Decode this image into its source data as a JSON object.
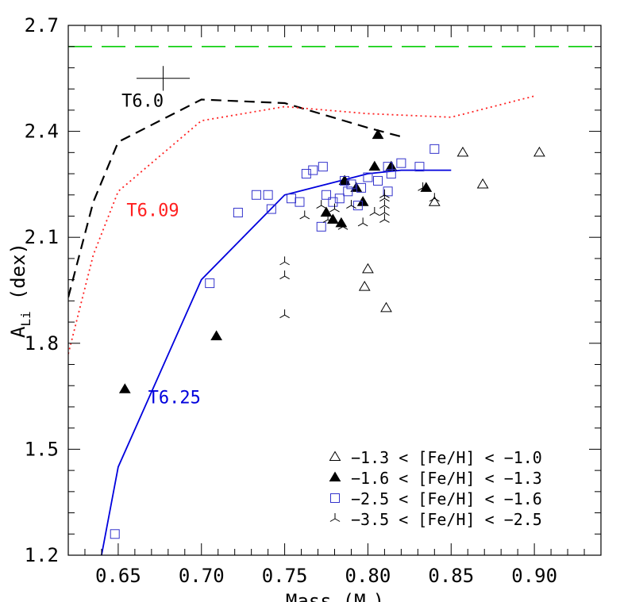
{
  "chart_data": {
    "type": "scatter",
    "xlabel_main": "Mass",
    "xlabel_unit": "(M",
    "xlabel_unit_close": ")",
    "ylabel_main": "A",
    "ylabel_sub": "Li",
    "ylabel_unit": "(dex)",
    "xlim": [
      0.62,
      0.94
    ],
    "ylim": [
      1.2,
      2.7
    ],
    "xticks": [
      0.65,
      0.7,
      0.75,
      0.8,
      0.85,
      0.9
    ],
    "xtick_labels": [
      "0.65",
      "0.70",
      "0.75",
      "0.80",
      "0.85",
      "0.90"
    ],
    "yticks": [
      1.2,
      1.5,
      1.8,
      2.1,
      2.4,
      2.7
    ],
    "ytick_labels": [
      "1.2",
      "1.5",
      "1.8",
      "2.1",
      "2.4",
      "2.7"
    ],
    "reference_line": {
      "y": 2.64,
      "color": "#00cc00",
      "style": "long-dash"
    },
    "error_bar": {
      "x": 0.677,
      "y": 2.55,
      "xerr": 0.016,
      "yerr": 0.035
    },
    "models": [
      {
        "name": "T6.0",
        "color": "#000000",
        "style": "dashed",
        "label_at": [
          0.652,
          2.47
        ],
        "points": [
          [
            0.62,
            1.93
          ],
          [
            0.635,
            2.2
          ],
          [
            0.65,
            2.37
          ],
          [
            0.7,
            2.49
          ],
          [
            0.75,
            2.48
          ],
          [
            0.8,
            2.41
          ],
          [
            0.82,
            2.385
          ]
        ]
      },
      {
        "name": "T6.09",
        "color": "#ff2020",
        "style": "dotted",
        "label_at": [
          0.655,
          2.16
        ],
        "points": [
          [
            0.62,
            1.77
          ],
          [
            0.635,
            2.05
          ],
          [
            0.65,
            2.23
          ],
          [
            0.7,
            2.43
          ],
          [
            0.75,
            2.47
          ],
          [
            0.8,
            2.45
          ],
          [
            0.85,
            2.44
          ],
          [
            0.9,
            2.5
          ]
        ]
      },
      {
        "name": "T6.25",
        "color": "#0000dd",
        "style": "solid",
        "label_at": [
          0.668,
          1.63
        ],
        "points": [
          [
            0.64,
            1.2
          ],
          [
            0.65,
            1.45
          ],
          [
            0.7,
            1.98
          ],
          [
            0.75,
            2.22
          ],
          [
            0.8,
            2.28
          ],
          [
            0.82,
            2.29
          ],
          [
            0.85,
            2.29
          ]
        ]
      }
    ],
    "series": [
      {
        "name": "−1.3 < [Fe/H] < −1.0",
        "marker": "open-triangle",
        "color": "#000000",
        "points": [
          [
            0.857,
            2.34
          ],
          [
            0.903,
            2.34
          ],
          [
            0.869,
            2.25
          ],
          [
            0.84,
            2.2
          ],
          [
            0.8,
            2.01
          ],
          [
            0.798,
            1.96
          ],
          [
            0.811,
            1.9
          ]
        ]
      },
      {
        "name": "−1.6 < [Fe/H] < −1.3",
        "marker": "filled-triangle",
        "color": "#000000",
        "points": [
          [
            0.806,
            2.39
          ],
          [
            0.804,
            2.3
          ],
          [
            0.814,
            2.3
          ],
          [
            0.786,
            2.26
          ],
          [
            0.793,
            2.24
          ],
          [
            0.835,
            2.24
          ],
          [
            0.775,
            2.17
          ],
          [
            0.779,
            2.15
          ],
          [
            0.784,
            2.14
          ],
          [
            0.797,
            2.2
          ],
          [
            0.709,
            1.82
          ],
          [
            0.654,
            1.67
          ]
        ]
      },
      {
        "name": "−2.5 < [Fe/H] < −1.6",
        "marker": "open-square",
        "color": "#3333cc",
        "points": [
          [
            0.84,
            2.35
          ],
          [
            0.82,
            2.31
          ],
          [
            0.831,
            2.3
          ],
          [
            0.812,
            2.3
          ],
          [
            0.767,
            2.29
          ],
          [
            0.773,
            2.3
          ],
          [
            0.763,
            2.28
          ],
          [
            0.814,
            2.28
          ],
          [
            0.8,
            2.27
          ],
          [
            0.786,
            2.26
          ],
          [
            0.806,
            2.26
          ],
          [
            0.79,
            2.25
          ],
          [
            0.796,
            2.24
          ],
          [
            0.733,
            2.22
          ],
          [
            0.74,
            2.22
          ],
          [
            0.788,
            2.23
          ],
          [
            0.812,
            2.23
          ],
          [
            0.775,
            2.22
          ],
          [
            0.783,
            2.21
          ],
          [
            0.754,
            2.21
          ],
          [
            0.759,
            2.2
          ],
          [
            0.779,
            2.2
          ],
          [
            0.742,
            2.18
          ],
          [
            0.722,
            2.17
          ],
          [
            0.794,
            2.19
          ],
          [
            0.772,
            2.13
          ],
          [
            0.705,
            1.97
          ],
          [
            0.648,
            1.26
          ]
        ]
      },
      {
        "name": "−3.5 < [Fe/H] < −2.5",
        "marker": "tri-star",
        "color": "#000000",
        "points": [
          [
            0.75,
            2.03
          ],
          [
            0.75,
            1.99
          ],
          [
            0.75,
            1.88
          ],
          [
            0.772,
            2.19
          ],
          [
            0.78,
            2.18
          ],
          [
            0.79,
            2.19
          ],
          [
            0.776,
            2.15
          ],
          [
            0.785,
            2.13
          ],
          [
            0.797,
            2.14
          ],
          [
            0.81,
            2.21
          ],
          [
            0.81,
            2.19
          ],
          [
            0.81,
            2.17
          ],
          [
            0.81,
            2.15
          ],
          [
            0.81,
            2.22
          ],
          [
            0.833,
            2.24
          ],
          [
            0.84,
            2.21
          ],
          [
            0.762,
            2.16
          ],
          [
            0.804,
            2.17
          ]
        ]
      }
    ],
    "legend_position": "bottom-right"
  }
}
